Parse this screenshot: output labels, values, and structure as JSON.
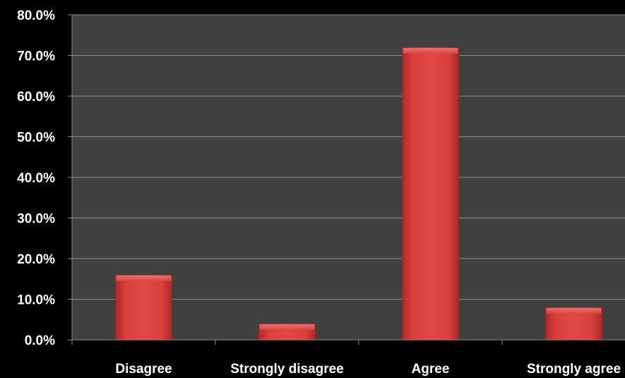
{
  "chart_data": {
    "type": "bar",
    "categories": [
      "Disagree",
      "Strongly disagree",
      "Agree",
      "Strongly agree"
    ],
    "values": [
      16.0,
      4.0,
      72.0,
      8.0
    ],
    "value_unit": "%",
    "ylim": [
      0,
      80
    ],
    "yticks": [
      "0.0%",
      "10.0%",
      "20.0%",
      "30.0%",
      "40.0%",
      "50.0%",
      "60.0%",
      "70.0%",
      "80.0%"
    ],
    "title": "",
    "xlabel": "",
    "ylabel": "",
    "grid": true,
    "legend": "none",
    "colors": {
      "background": "#000000",
      "plot_area": "#404040",
      "gridline": "#8c8c8c",
      "bar": "#d93f3c",
      "bar_highlight": "#ee6460",
      "bar_shadow": "#9c2220",
      "text": "#ffffff"
    }
  }
}
